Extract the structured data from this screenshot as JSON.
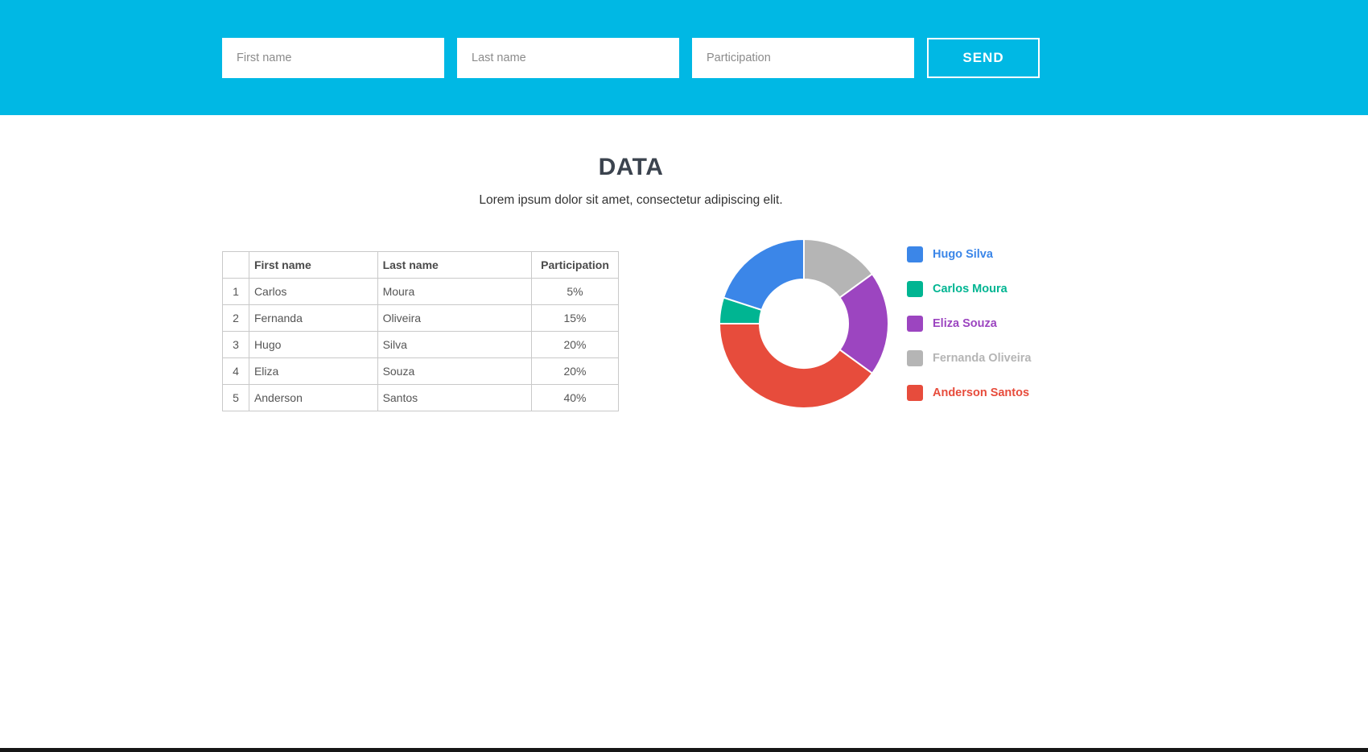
{
  "header": {
    "bg_color": "#00b8e4",
    "inputs": [
      {
        "placeholder": "First name",
        "value": ""
      },
      {
        "placeholder": "Last name",
        "value": ""
      },
      {
        "placeholder": "Participation",
        "value": ""
      }
    ],
    "send_label": "SEND"
  },
  "main": {
    "title": "DATA",
    "subtitle": "Lorem ipsum dolor sit amet, consectetur adipiscing elit."
  },
  "table": {
    "headers": [
      "",
      "First name",
      "Last name",
      "Participation"
    ],
    "rows": [
      {
        "index": "1",
        "first_name": "Carlos",
        "last_name": "Moura",
        "participation": "5%"
      },
      {
        "index": "2",
        "first_name": "Fernanda",
        "last_name": "Oliveira",
        "participation": "15%"
      },
      {
        "index": "3",
        "first_name": "Hugo",
        "last_name": "Silva",
        "participation": "20%"
      },
      {
        "index": "4",
        "first_name": "Eliza",
        "last_name": "Souza",
        "participation": "20%"
      },
      {
        "index": "5",
        "first_name": "Anderson",
        "last_name": "Santos",
        "participation": "40%"
      }
    ]
  },
  "chart_data": {
    "type": "pie",
    "subtype": "donut",
    "title": "",
    "legend_position": "right",
    "categories": [
      "Hugo Silva",
      "Carlos Moura",
      "Eliza Souza",
      "Fernanda Oliveira",
      "Anderson Santos"
    ],
    "values": [
      20,
      5,
      20,
      15,
      40
    ],
    "unit": "%",
    "colors": [
      "#3b86e8",
      "#00b592",
      "#9c45c0",
      "#b5b5b5",
      "#e74c3c"
    ],
    "draw_order_clockwise_from_top": [
      3,
      2,
      4,
      1,
      0
    ]
  }
}
